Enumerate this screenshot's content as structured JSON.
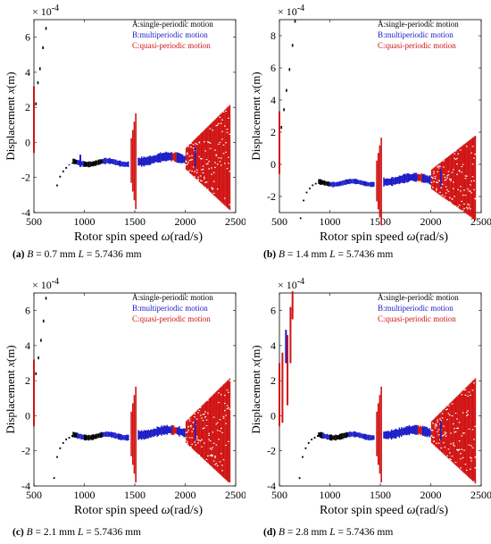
{
  "colors": {
    "A": "#000000",
    "B": "#1c1cc8",
    "C": "#d01414"
  },
  "panels": [
    {
      "caption": {
        "label": "(a)",
        "var1": "B",
        "eq1": " = 0.7 mm ",
        "var2": "L",
        "eq2": " = 5.7436 mm"
      },
      "exponent": {
        "base": "× 10",
        "power": "-4"
      },
      "yticks": [
        6,
        4,
        2,
        0,
        -2,
        -4
      ],
      "xticks": [
        500,
        1000,
        1500,
        2000,
        2500
      ],
      "hiA": [
        [
          520,
          2.2
        ],
        [
          540,
          3.4
        ],
        [
          560,
          4.2
        ],
        [
          590,
          5.4
        ],
        [
          620,
          6.5
        ]
      ],
      "preC": [
        [
          500,
          -0.6,
          3.2
        ]
      ],
      "transA": [
        [
          700,
          -3.7,
          -3.7
        ],
        [
          730,
          -2.5,
          -2.4
        ],
        [
          760,
          -2.0,
          -1.9
        ],
        [
          790,
          -1.7,
          -1.6
        ],
        [
          820,
          -1.5,
          -1.4
        ],
        [
          850,
          -1.3,
          -1.25
        ],
        [
          880,
          -1.2,
          -1.15
        ]
      ],
      "bumpB": [
        [
          960,
          -1.4,
          -0.7
        ]
      ],
      "beforeEnd": 1500,
      "last": 0
    },
    {
      "caption": {
        "label": "(b)",
        "var1": "B",
        "eq1": " = 1.4 mm ",
        "var2": "L",
        "eq2": " = 5.7436 mm"
      },
      "exponent": {
        "base": "× 10",
        "power": "-4"
      },
      "yticks": [
        8,
        6,
        4,
        2,
        0,
        -2
      ],
      "xticks": [
        500,
        1000,
        1500,
        2000,
        2500
      ],
      "hiA": [
        [
          520,
          2.3
        ],
        [
          545,
          3.4
        ],
        [
          570,
          4.6
        ],
        [
          600,
          5.9
        ],
        [
          630,
          7.4
        ],
        [
          655,
          8.9
        ]
      ],
      "preC": [
        [
          500,
          -0.6,
          3.3
        ]
      ],
      "transA": [
        [
          710,
          -3.4,
          -3.3
        ],
        [
          740,
          -2.3,
          -2.2
        ],
        [
          770,
          -1.8,
          -1.7
        ],
        [
          800,
          -1.55,
          -1.45
        ],
        [
          830,
          -1.35,
          -1.25
        ],
        [
          860,
          -1.25,
          -1.15
        ]
      ],
      "bumpB": [],
      "beforeEnd": 1500,
      "last": 1
    },
    {
      "caption": {
        "label": "(c)",
        "var1": "B",
        "eq1": " = 2.1 mm ",
        "var2": "L",
        "eq2": " = 5.7436 mm"
      },
      "exponent": {
        "base": "× 10",
        "power": "-4"
      },
      "yticks": [
        6,
        4,
        2,
        0,
        -2,
        -4
      ],
      "xticks": [
        500,
        1000,
        1500,
        2000,
        2500
      ],
      "hiA": [
        [
          520,
          2.4
        ],
        [
          545,
          3.3
        ],
        [
          570,
          4.3
        ],
        [
          595,
          5.4
        ],
        [
          620,
          6.7
        ]
      ],
      "preC": [
        [
          500,
          -0.6,
          3.2
        ]
      ],
      "transA": [
        [
          700,
          -3.6,
          -3.5
        ],
        [
          730,
          -2.4,
          -2.3
        ],
        [
          760,
          -1.9,
          -1.8
        ],
        [
          790,
          -1.6,
          -1.5
        ],
        [
          820,
          -1.4,
          -1.3
        ],
        [
          850,
          -1.3,
          -1.2
        ],
        [
          880,
          -1.2,
          -1.1
        ]
      ],
      "bumpB": [],
      "beforeEnd": 1500,
      "last": 0
    },
    {
      "caption": {
        "label": "(d)",
        "var1": "B",
        "eq1": " = 2.8 mm ",
        "var2": "L",
        "eq2": " = 5.7436 mm"
      },
      "exponent": {
        "base": "× 10",
        "power": "-4"
      },
      "yticks": [
        6,
        4,
        2,
        0,
        -2,
        -4
      ],
      "xticks": [
        500,
        1000,
        1500,
        2000,
        2500
      ],
      "hiA": [],
      "preC": [
        [
          500,
          -0.6,
          3.0
        ],
        [
          530,
          -0.4,
          3.6
        ],
        [
          580,
          0.6,
          4.6
        ],
        [
          610,
          3.0,
          6.2
        ],
        [
          630,
          5.5,
          7.1
        ]
      ],
      "preB": [
        [
          565,
          3.0,
          4.9
        ]
      ],
      "transA": [
        [
          700,
          -3.6,
          -3.5
        ],
        [
          730,
          -2.4,
          -2.3
        ],
        [
          760,
          -1.9,
          -1.8
        ],
        [
          790,
          -1.6,
          -1.5
        ],
        [
          820,
          -1.4,
          -1.3
        ],
        [
          850,
          -1.3,
          -1.2
        ],
        [
          880,
          -1.2,
          -1.1
        ]
      ],
      "bumpB": [],
      "beforeEnd": 1500,
      "last": 0
    }
  ],
  "legend": {
    "a": "A:single-periodic motion",
    "b": "B:multiperiodic motion",
    "c": "C:quasi-periodic motion"
  },
  "axes": {
    "ylabel_main": "Displacement ",
    "ylabel_var": "x",
    "ylabel_unit": "(m)",
    "xlabel_main": "Rotor spin speed ",
    "xlabel_var": "ω",
    "xlabel_unit": "(rad/s)"
  },
  "chart_data": [
    {
      "type": "scatter",
      "title": "(a) B = 0.7 mm L = 5.7436 mm",
      "xlabel": "Rotor spin speed ω(rad/s)",
      "ylabel": "Displacement x(m)",
      "xlim": [
        500,
        2500
      ],
      "ylim": [
        -4,
        7
      ],
      "y_scale_factor": "× 10^-4",
      "series": [
        {
          "name": "A:single-periodic motion",
          "x_range": [
            500,
            1200
          ]
        },
        {
          "name": "B:multiperiodic motion",
          "x_range": [
            950,
            2000
          ]
        },
        {
          "name": "C:quasi-periodic motion",
          "x_range": [
            1450,
            2450
          ]
        }
      ]
    },
    {
      "type": "scatter",
      "title": "(b) B = 1.4 mm L = 5.7436 mm",
      "xlabel": "Rotor spin speed ω(rad/s)",
      "ylabel": "Displacement x(m)",
      "xlim": [
        500,
        2500
      ],
      "ylim": [
        -3,
        9
      ],
      "y_scale_factor": "× 10^-4",
      "series": [
        {
          "name": "A:single-periodic motion",
          "x_range": [
            500,
            1000
          ]
        },
        {
          "name": "B:multiperiodic motion",
          "x_range": [
            1000,
            2000
          ]
        },
        {
          "name": "C:quasi-periodic motion",
          "x_range": [
            1450,
            2450
          ]
        }
      ]
    },
    {
      "type": "scatter",
      "title": "(c) B = 2.1 mm L = 5.7436 mm",
      "xlabel": "Rotor spin speed ω(rad/s)",
      "ylabel": "Displacement x(m)",
      "xlim": [
        500,
        2500
      ],
      "ylim": [
        -4,
        7
      ],
      "y_scale_factor": "× 10^-4",
      "series": [
        {
          "name": "A:single-periodic motion",
          "x_range": [
            500,
            1200
          ]
        },
        {
          "name": "B:multiperiodic motion",
          "x_range": [
            900,
            2000
          ]
        },
        {
          "name": "C:quasi-periodic motion",
          "x_range": [
            1450,
            2450
          ]
        }
      ]
    },
    {
      "type": "scatter",
      "title": "(d) B = 2.8 mm L = 5.7436 mm",
      "xlabel": "Rotor spin speed ω(rad/s)",
      "ylabel": "Displacement x(m)",
      "xlim": [
        500,
        2500
      ],
      "ylim": [
        -4,
        7
      ],
      "y_scale_factor": "× 10^-4",
      "series": [
        {
          "name": "A:single-periodic motion",
          "x_range": [
            700,
            1200
          ]
        },
        {
          "name": "B:multiperiodic motion",
          "x_range": [
            560,
            2000
          ]
        },
        {
          "name": "C:quasi-periodic motion",
          "x_range": [
            500,
            2450
          ]
        }
      ]
    }
  ]
}
